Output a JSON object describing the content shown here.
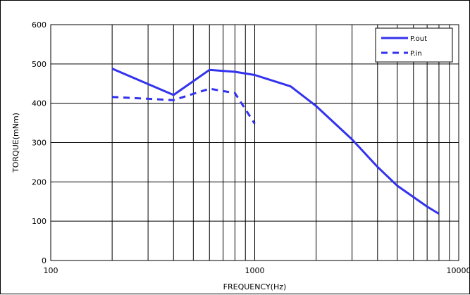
{
  "chart_data": {
    "type": "line",
    "xscale": "log",
    "xlabel": "FREQUENCY(Hz)",
    "ylabel": "TORQUE(mNm)",
    "xlim": [
      100,
      10000
    ],
    "ylim": [
      0,
      600
    ],
    "xticks": [
      {
        "value": 100,
        "label": "100"
      },
      {
        "value": 1000,
        "label": "1000"
      },
      {
        "value": 10000,
        "label": "10000"
      }
    ],
    "yticks": [
      {
        "value": 0,
        "label": "0"
      },
      {
        "value": 100,
        "label": "100"
      },
      {
        "value": 200,
        "label": "200"
      },
      {
        "value": 300,
        "label": "300"
      },
      {
        "value": 400,
        "label": "400"
      },
      {
        "value": 500,
        "label": "500"
      },
      {
        "value": 600,
        "label": "600"
      }
    ],
    "grid": true,
    "legend_position": "top-right",
    "series": [
      {
        "name": "P.out",
        "style": "solid",
        "color": "#3333ee",
        "x": [
          200,
          400,
          600,
          800,
          1000,
          1500,
          2000,
          3000,
          4000,
          5000,
          7000,
          8000
        ],
        "y": [
          488,
          421,
          485,
          480,
          472,
          443,
          393,
          308,
          238,
          190,
          137,
          119
        ]
      },
      {
        "name": "P.in",
        "style": "dashed",
        "color": "#3333ee",
        "x": [
          200,
          400,
          600,
          800,
          1000
        ],
        "y": [
          416,
          408,
          437,
          426,
          348
        ]
      }
    ]
  }
}
